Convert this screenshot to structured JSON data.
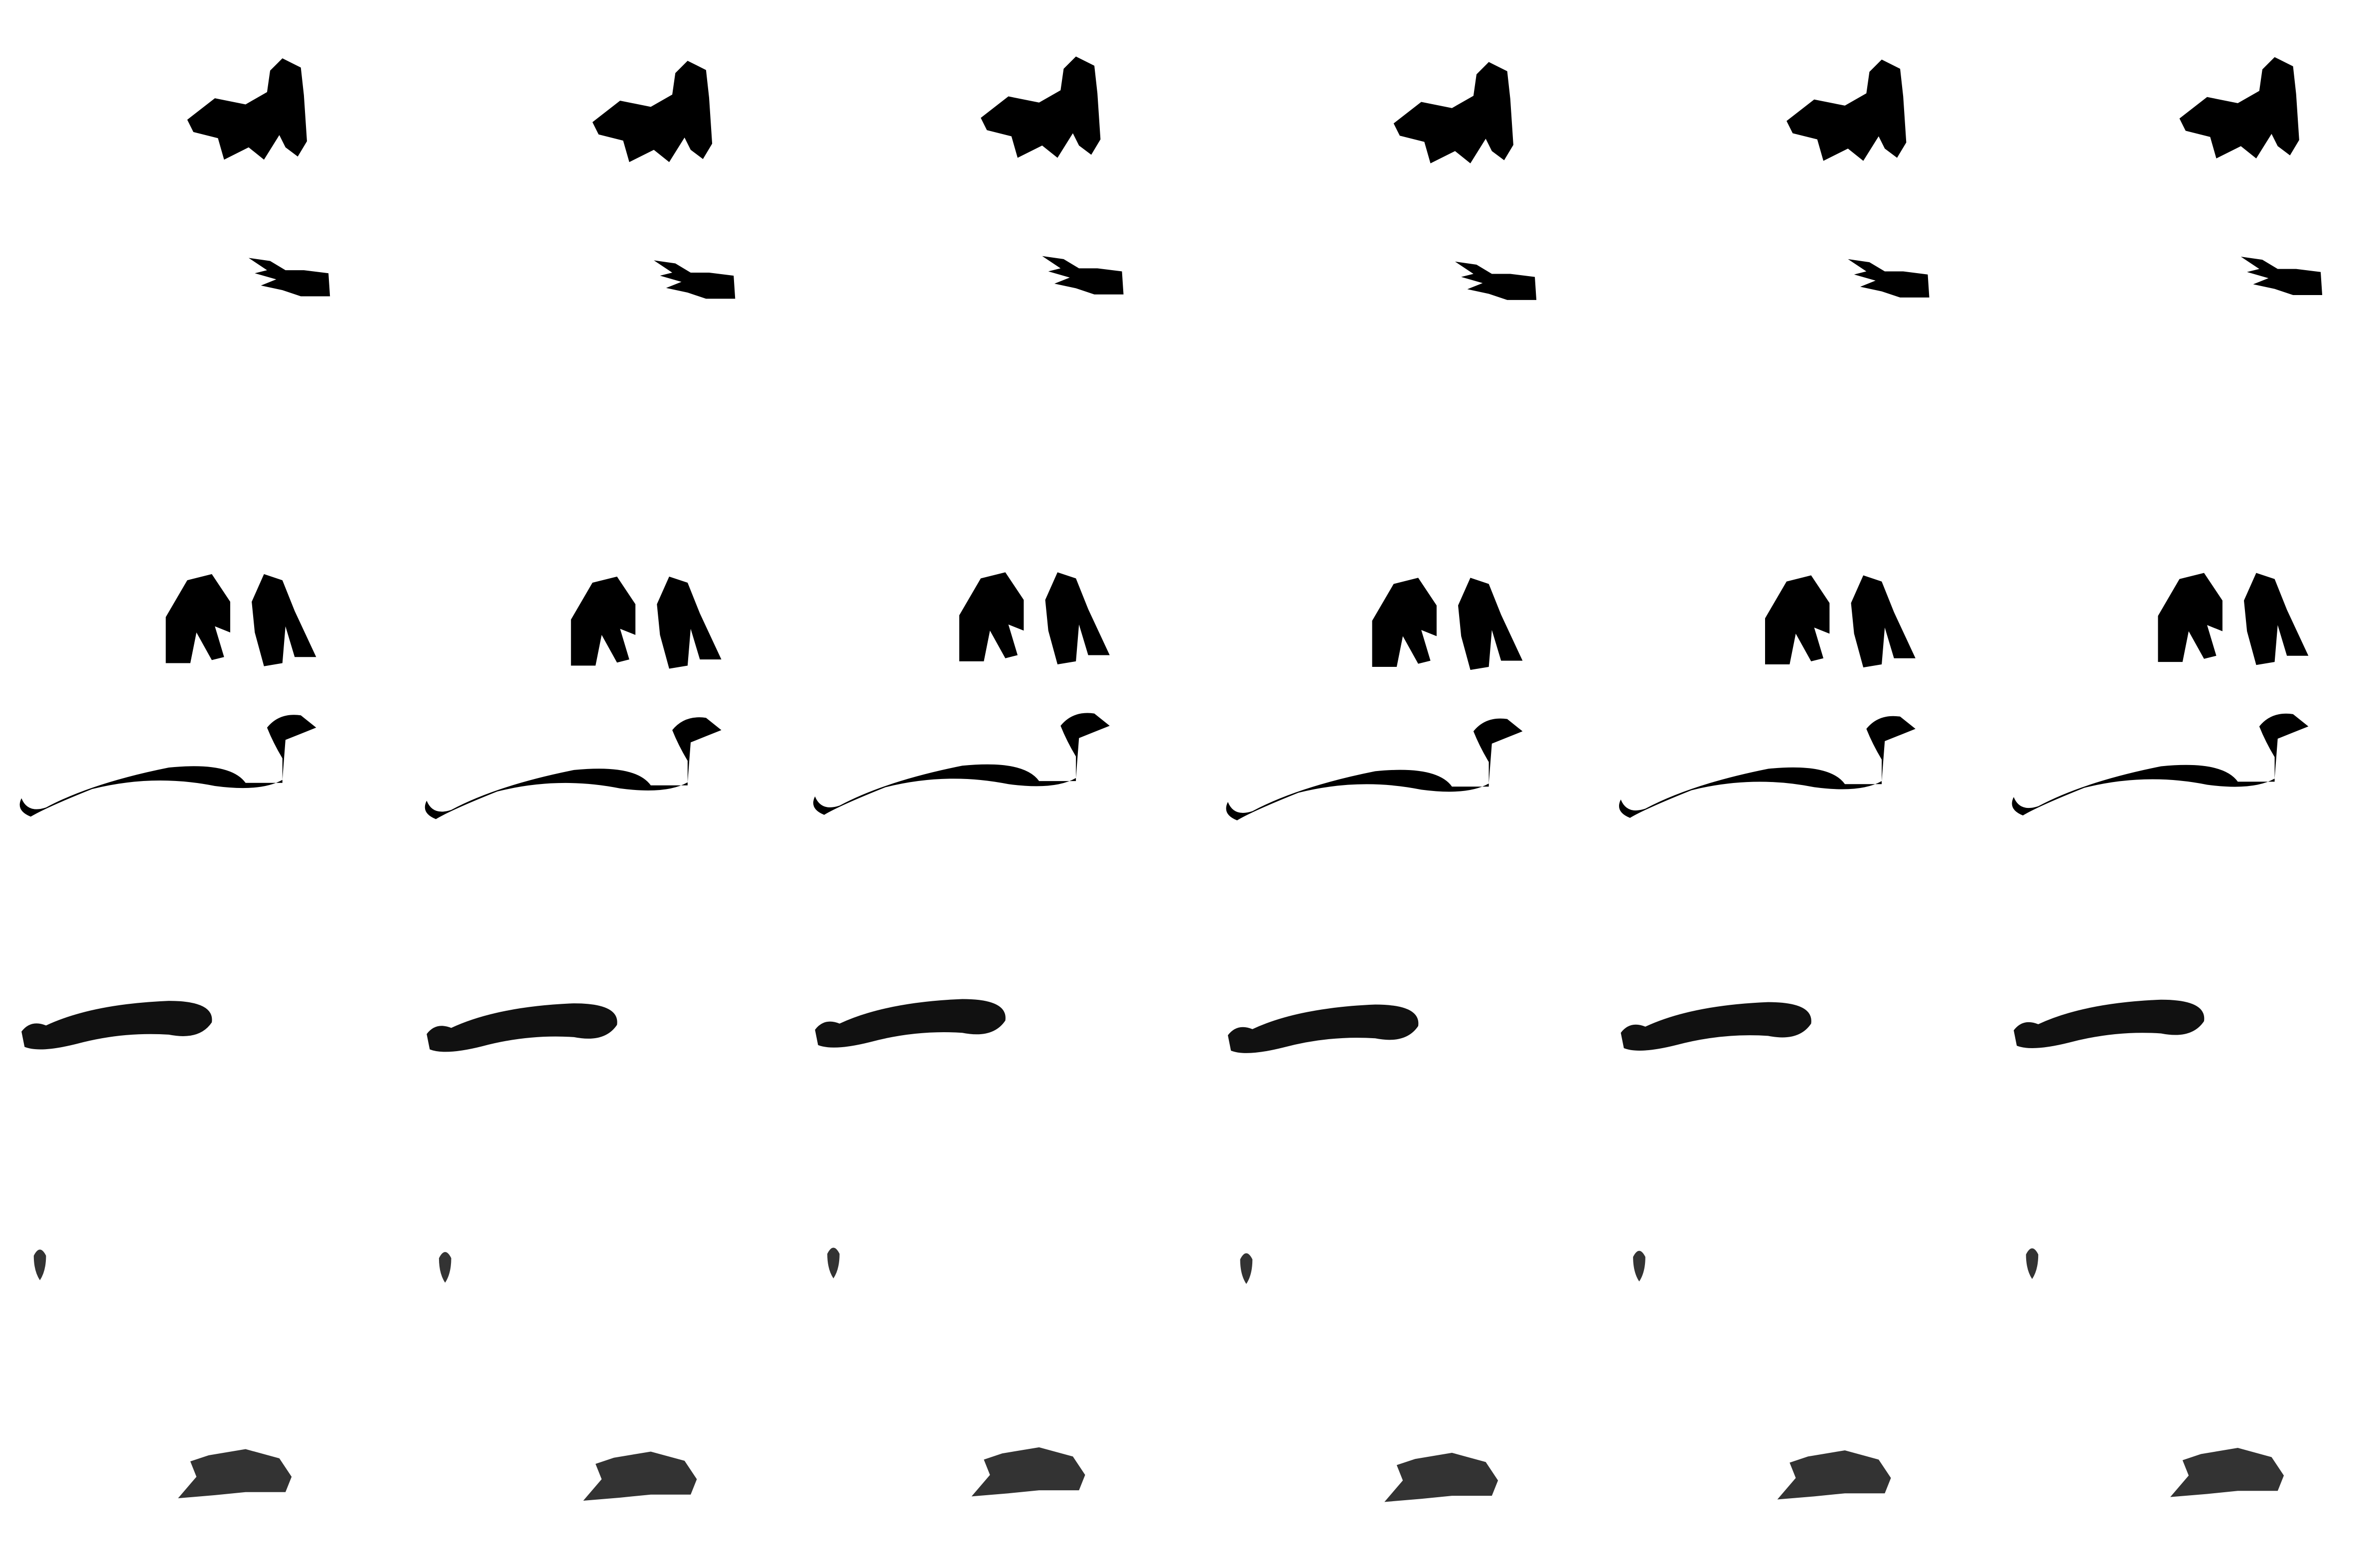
{
  "sheet": {
    "title": "",
    "background_color": "#ffffff",
    "columns": 6,
    "frames_per_row": 6
  },
  "rows": [
    {
      "part": "body-torso",
      "color": "#000000",
      "frames": 6
    },
    {
      "part": "head",
      "color": "#000000",
      "frames": 6
    },
    {
      "part": "legs",
      "color": "#000000",
      "frames": 6
    },
    {
      "part": "tail-with-neck",
      "color": "#000000",
      "frames": 6
    },
    {
      "part": "tail-curl",
      "color": "#111111",
      "frames": 6
    },
    {
      "part": "tail-tip",
      "color": "#333333",
      "frames": 6
    },
    {
      "part": "wing-blob",
      "color": "#333333",
      "frames": 6
    }
  ]
}
